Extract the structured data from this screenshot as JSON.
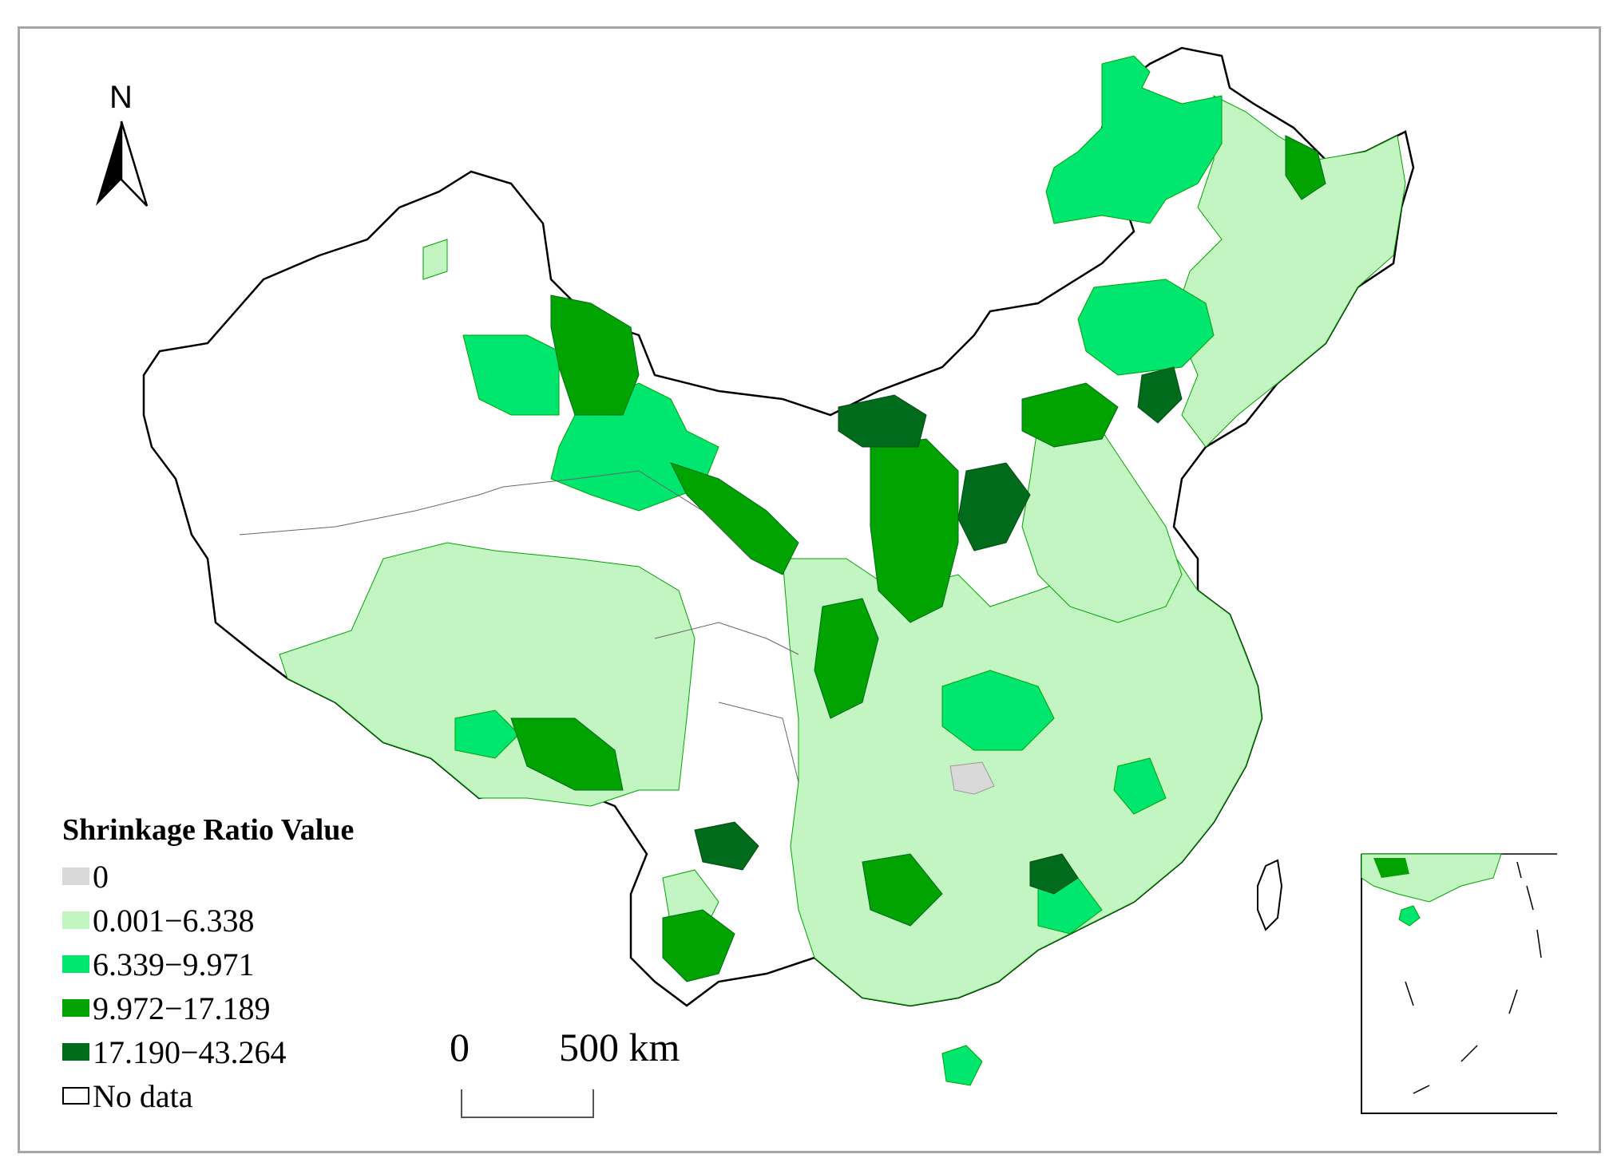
{
  "legend": {
    "title": "Shrinkage Ratio Value",
    "items": [
      {
        "label": "0",
        "color": "#d9d9d9"
      },
      {
        "label": "0.001−6.338",
        "color": "#c2f5c2"
      },
      {
        "label": "6.339−9.971",
        "color": "#00e66e"
      },
      {
        "label": "9.972−17.189",
        "color": "#00a300"
      },
      {
        "label": "17.190−43.264",
        "color": "#006b1a"
      },
      {
        "label": "No data",
        "color": "#ffffff"
      }
    ]
  },
  "north_arrow": {
    "label": "N",
    "icon": "north-arrow-icon"
  },
  "scale_bar": {
    "start_label": "0",
    "end_label": "500 km"
  },
  "colors": {
    "border": "#000000",
    "frame": "#a6a6a6",
    "no_data": "#ffffff"
  }
}
